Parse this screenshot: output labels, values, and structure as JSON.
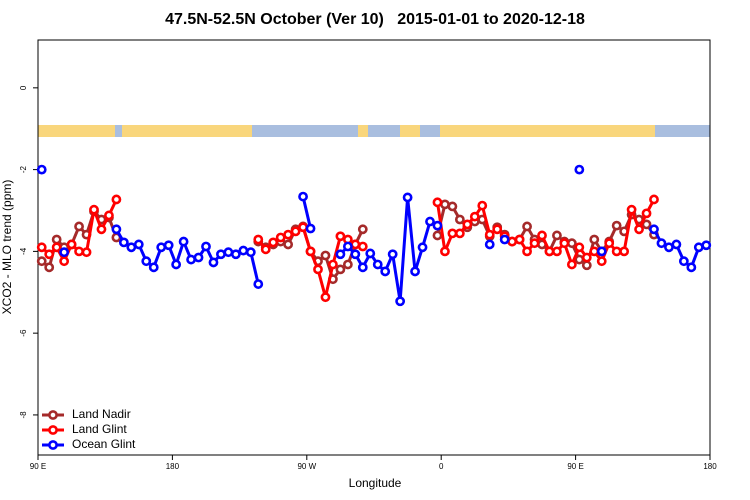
{
  "chart_data": {
    "type": "line",
    "title": "47.5N-52.5N October (Ver 10)   2015-01-01 to 2020-12-18",
    "x_label": "Longitude",
    "y_label": "XCO2 - MLO trend (ppm)",
    "xlim": [
      90,
      540
    ],
    "ylim": [
      -8.98,
      1.17
    ],
    "xticks": [
      {
        "value": 90,
        "label": "90 E"
      },
      180,
      {
        "value": 270,
        "label": "90 W"
      },
      {
        "value": 360,
        "label": "0"
      },
      {
        "value": 450,
        "label": "90 E"
      },
      {
        "value": 540,
        "label": "180"
      }
    ],
    "yticks": [
      0,
      -2,
      -4,
      -6,
      -8
    ],
    "legend": "bottom-left",
    "series": [
      {
        "name": "Land Nadir",
        "color": "#a52a2a",
        "x": [
          92.5,
          97.5,
          102.5,
          107.5,
          112.5,
          117.5,
          122.5,
          127.5,
          132.5,
          137.5,
          142.5,
          147.5,
          237.5,
          242.5,
          247.5,
          252.5,
          257.5,
          262.5,
          267.5,
          272.5,
          277.5,
          282.5,
          287.5,
          292.5,
          297.5,
          302.5,
          307.5,
          312.5,
          357.5,
          362.5,
          367.5,
          372.5,
          377.5,
          382.5,
          387.5,
          392.5,
          397.5,
          402.5,
          407.5,
          412.5,
          417.5,
          422.5,
          427.5,
          432.5,
          437.5,
          442.5,
          447.5,
          452.5,
          457.5,
          462.5,
          467.5,
          472.5,
          477.5,
          482.5,
          487.5,
          492.5,
          497.5,
          502.5
        ],
        "values": [
          -4.24,
          -4.39,
          -3.71,
          -3.9,
          -3.83,
          -3.39,
          -3.59,
          -3.02,
          -3.22,
          -3.17,
          -3.66,
          null,
          -3.76,
          -3.9,
          -3.83,
          -3.76,
          -3.83,
          -3.46,
          -3.39,
          -4.0,
          -4.24,
          -4.1,
          -4.68,
          -4.44,
          -4.32,
          -3.83,
          -3.46,
          null,
          -3.61,
          -2.85,
          -2.9,
          -3.22,
          -3.41,
          -3.27,
          -3.22,
          -3.63,
          -3.41,
          -3.59,
          -3.76,
          -3.71,
          -3.39,
          -3.71,
          -3.83,
          -4.0,
          -3.61,
          -3.76,
          -3.8,
          -4.2,
          -4.34,
          -3.71,
          -4.0,
          -3.76,
          -3.37,
          -3.51,
          -3.1,
          -3.22,
          -3.34,
          -3.59
        ]
      },
      {
        "name": "Land Glint",
        "color": "#ff0000",
        "x": [
          92.5,
          97.5,
          102.5,
          107.5,
          112.5,
          117.5,
          122.5,
          127.5,
          132.5,
          137.5,
          142.5,
          147.5,
          237.5,
          242.5,
          247.5,
          252.5,
          257.5,
          262.5,
          267.5,
          272.5,
          277.5,
          282.5,
          287.5,
          292.5,
          297.5,
          302.5,
          307.5,
          312.5,
          357.5,
          362.5,
          367.5,
          372.5,
          377.5,
          382.5,
          387.5,
          392.5,
          397.5,
          402.5,
          407.5,
          412.5,
          417.5,
          422.5,
          427.5,
          432.5,
          437.5,
          442.5,
          447.5,
          452.5,
          457.5,
          462.5,
          467.5,
          472.5,
          477.5,
          482.5,
          487.5,
          492.5,
          497.5,
          502.5
        ],
        "values": [
          -3.9,
          -4.07,
          -3.9,
          -4.24,
          -3.83,
          -4.0,
          -4.02,
          -2.98,
          -3.46,
          -3.12,
          -2.73,
          null,
          -3.71,
          -3.95,
          -3.78,
          -3.66,
          -3.59,
          -3.51,
          -3.41,
          -4.0,
          -4.44,
          -5.12,
          -4.32,
          -3.63,
          -3.71,
          -3.83,
          -3.88,
          null,
          -2.8,
          -4.0,
          -3.56,
          -3.56,
          -3.34,
          -3.15,
          -2.88,
          -3.59,
          -3.46,
          -3.63,
          -3.76,
          -3.71,
          -4.0,
          -3.8,
          -3.61,
          -4.0,
          -4.0,
          -3.8,
          -4.32,
          -3.9,
          -4.15,
          -4.0,
          -4.24,
          -3.8,
          -4.0,
          -4.0,
          -2.98,
          -3.46,
          -3.07,
          -2.73
        ]
      },
      {
        "name": "Ocean Glint",
        "color": "#0000ff",
        "x": [
          92.5,
          97.5,
          107.5,
          112.5,
          142.5,
          147.5,
          152.5,
          157.5,
          162.5,
          167.5,
          172.5,
          177.5,
          182.5,
          187.5,
          192.5,
          197.5,
          202.5,
          207.5,
          212.5,
          217.5,
          222.5,
          227.5,
          232.5,
          237.5,
          242.5,
          267.5,
          272.5,
          277.5,
          292.5,
          297.5,
          302.5,
          307.5,
          312.5,
          317.5,
          322.5,
          327.5,
          332.5,
          337.5,
          342.5,
          347.5,
          352.5,
          357.5,
          362.5,
          392.5,
          397.5,
          402.5,
          407.5,
          452.5,
          457.5,
          467.5,
          472.5,
          502.5,
          507.5,
          512.5,
          517.5,
          522.5,
          527.5,
          532.5,
          537.5
        ],
        "values": [
          -2.0,
          null,
          -4.02,
          null,
          -3.46,
          -3.78,
          -3.9,
          -3.83,
          -4.24,
          -4.39,
          -3.9,
          -3.85,
          -4.32,
          -3.76,
          -4.2,
          -4.15,
          -3.88,
          -4.27,
          -4.07,
          -4.02,
          -4.07,
          -3.98,
          -4.02,
          -4.8,
          null,
          -2.66,
          -3.44,
          null,
          -4.07,
          -3.88,
          -4.07,
          -4.39,
          -4.05,
          -4.32,
          -4.49,
          -4.07,
          -5.22,
          -2.68,
          -4.49,
          -3.9,
          -3.27,
          -3.37,
          null,
          -3.83,
          null,
          -3.71,
          null,
          -2.0,
          null,
          -4.0,
          null,
          -3.46,
          -3.8,
          -3.9,
          -3.83,
          -4.24,
          -4.39,
          -3.9,
          -3.85
        ]
      }
    ]
  }
}
